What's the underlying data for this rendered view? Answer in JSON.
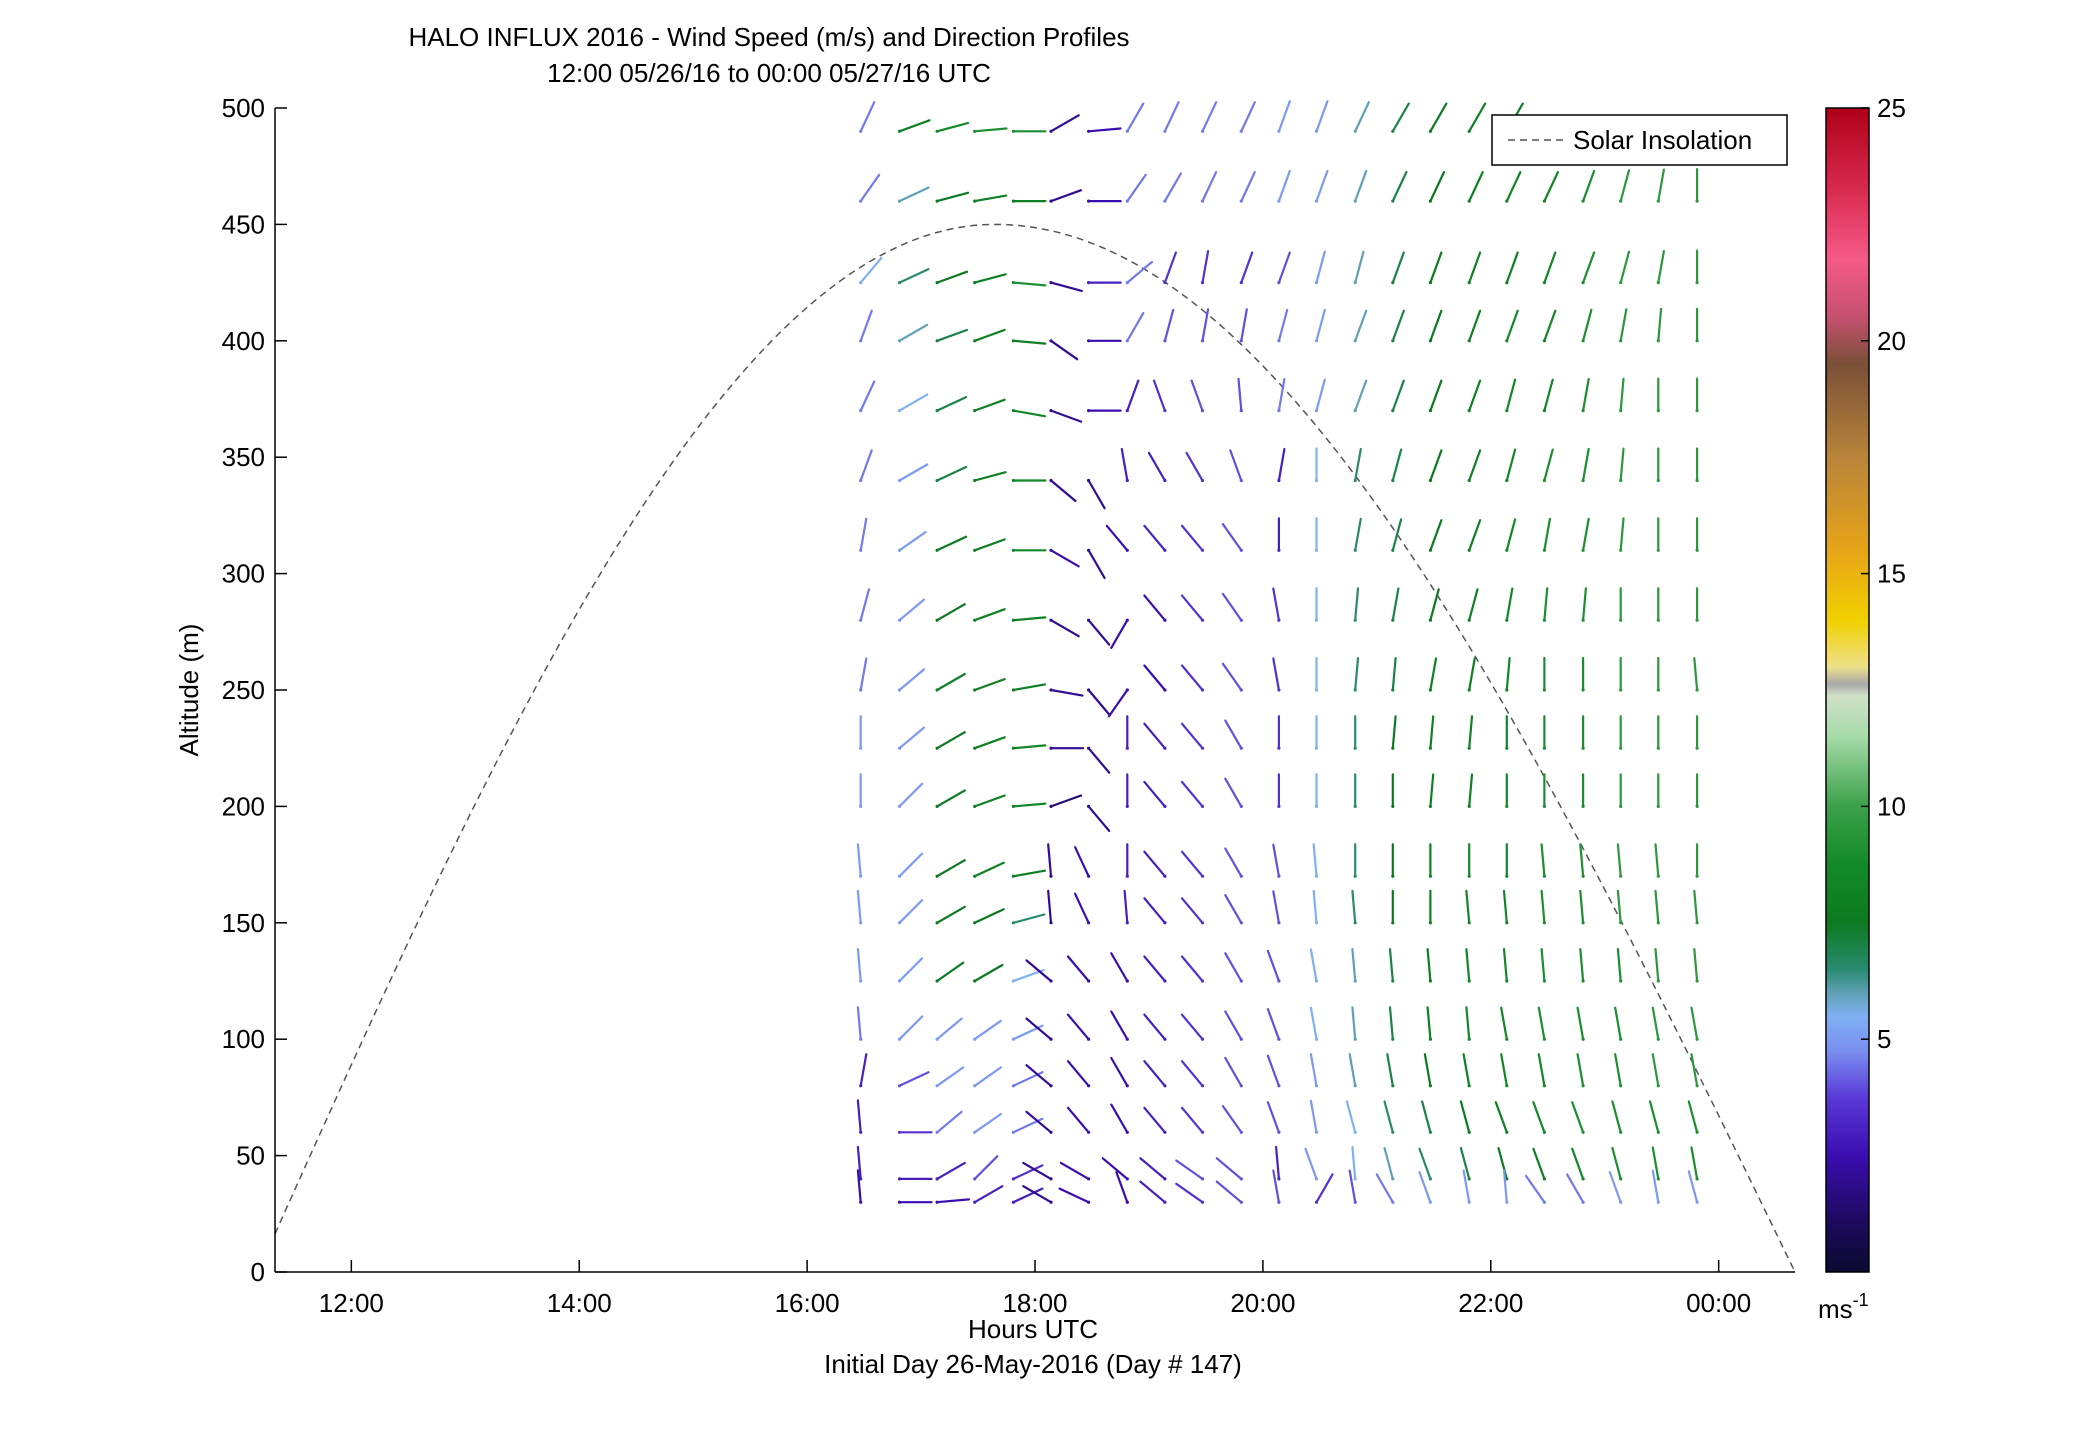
{
  "chart_data": {
    "type": "wind-barb-profile",
    "title": "HALO INFLUX 2016 - Wind Speed (m/s) and Direction Profiles",
    "subtitle": "12:00 05/26/16 to 00:00 05/27/16  UTC",
    "xlabel": "Hours UTC",
    "xlabel_note": "Initial Day 26-May-2016 (Day # 147)",
    "ylabel": "Altitude (m)",
    "x_range_hours": [
      11.33,
      24.67
    ],
    "x_ticks": [
      {
        "value": 12,
        "label": "12:00"
      },
      {
        "value": 14,
        "label": "14:00"
      },
      {
        "value": 16,
        "label": "16:00"
      },
      {
        "value": 18,
        "label": "18:00"
      },
      {
        "value": 20,
        "label": "20:00"
      },
      {
        "value": 22,
        "label": "22:00"
      },
      {
        "value": 24,
        "label": "00:00"
      }
    ],
    "ylim": [
      0,
      500
    ],
    "y_ticks": [
      0,
      50,
      100,
      150,
      200,
      250,
      300,
      350,
      400,
      450,
      500
    ],
    "colorbar": {
      "range": [
        0,
        25
      ],
      "ticks": [
        5,
        10,
        15,
        20,
        25
      ],
      "unit_label": "ms",
      "unit_exponent": "-1"
    },
    "legend": {
      "position": "top-right",
      "entries": [
        "Solar Insolation"
      ]
    },
    "solar_insolation": {
      "style": "dashed",
      "color": "#555555",
      "peak_time_hours": 17.65,
      "peak_altitude_equiv_m": 450,
      "zero_time_hours": [
        11.18,
        24.67
      ]
    },
    "wind_times_hours": [
      16.33,
      16.67,
      17.0,
      17.33,
      17.67,
      18.0,
      18.33,
      18.67,
      19.0,
      19.33,
      19.67,
      20.0,
      20.33,
      20.67,
      21.0,
      21.33,
      21.67,
      22.0,
      22.33,
      22.67,
      23.0,
      23.33,
      23.67
    ],
    "wind_altitudes_m": [
      30,
      40,
      60,
      80,
      100,
      125,
      150,
      170,
      200,
      225,
      250,
      280,
      310,
      340,
      370,
      400,
      425,
      460,
      490
    ],
    "wind_barbs": [
      {
        "alt": 490,
        "speed": [
          4.5,
          8,
          8.5,
          9,
          9,
          2,
          2.5,
          4.5,
          4.5,
          4.5,
          4.5,
          5,
          5,
          6,
          7,
          7.5,
          8,
          8
        ],
        "dir": [
          205,
          250,
          255,
          265,
          270,
          240,
          265,
          210,
          205,
          205,
          205,
          200,
          200,
          205,
          210,
          210,
          210,
          210
        ]
      },
      {
        "alt": 460,
        "speed": [
          4.5,
          6,
          7.5,
          8,
          8,
          2,
          2.5,
          4.5,
          4.5,
          4.5,
          4.5,
          5,
          5,
          6,
          7,
          7.5,
          8,
          8.5,
          8.5,
          9,
          9.5,
          9.5,
          9.5
        ],
        "dir": [
          215,
          245,
          255,
          260,
          270,
          250,
          270,
          215,
          210,
          205,
          205,
          200,
          200,
          200,
          205,
          205,
          205,
          205,
          205,
          200,
          195,
          190,
          180
        ]
      },
      {
        "alt": 425,
        "speed": [
          5.5,
          6.5,
          7.5,
          8,
          9,
          2,
          3,
          4.5,
          3.5,
          3.5,
          3.5,
          4,
          5,
          6,
          7,
          7.5,
          8,
          8,
          8.5,
          9,
          9.5,
          9.5,
          9.5
        ],
        "dir": [
          220,
          245,
          250,
          255,
          275,
          285,
          270,
          230,
          200,
          190,
          200,
          200,
          195,
          195,
          200,
          200,
          200,
          200,
          200,
          200,
          195,
          190,
          180
        ]
      },
      {
        "alt": 400,
        "speed": [
          4.5,
          6,
          7,
          8,
          8,
          2,
          2.5,
          4.5,
          4,
          4,
          4,
          4.5,
          5,
          6,
          7,
          7.5,
          8,
          8.5,
          8.5,
          9,
          9.5,
          9.5,
          9.5
        ],
        "dir": [
          200,
          240,
          250,
          250,
          275,
          305,
          270,
          210,
          195,
          190,
          190,
          195,
          195,
          200,
          200,
          200,
          200,
          200,
          200,
          195,
          190,
          185,
          180
        ]
      },
      {
        "alt": 370,
        "speed": [
          4.5,
          5.5,
          7,
          8,
          8.5,
          2,
          2.5,
          3,
          3.5,
          4,
          4,
          4.5,
          5,
          6,
          7,
          7.5,
          8,
          8.5,
          8.5,
          9,
          9.5,
          9.5,
          9.5
        ],
        "dir": [
          205,
          240,
          245,
          250,
          280,
          290,
          270,
          200,
          160,
          160,
          175,
          190,
          195,
          200,
          200,
          200,
          200,
          195,
          195,
          190,
          185,
          180,
          180
        ]
      },
      {
        "alt": 340,
        "speed": [
          4.5,
          5,
          7,
          8,
          8.5,
          2,
          2,
          3,
          3,
          3.5,
          4,
          3,
          5.5,
          6.5,
          7,
          7.5,
          8,
          8.5,
          9,
          9,
          9.5,
          9.5,
          9.5
        ],
        "dir": [
          200,
          240,
          245,
          255,
          270,
          310,
          330,
          170,
          150,
          150,
          160,
          190,
          180,
          190,
          195,
          200,
          200,
          195,
          195,
          190,
          185,
          180,
          180
        ]
      },
      {
        "alt": 310,
        "speed": [
          4.5,
          5,
          7.5,
          8,
          8.5,
          2.5,
          2,
          2.5,
          3,
          3.5,
          4,
          3,
          5.5,
          6.5,
          7,
          7.5,
          8,
          8.5,
          9,
          9,
          9.5,
          9.5,
          9.5
        ],
        "dir": [
          190,
          235,
          245,
          250,
          270,
          300,
          330,
          140,
          140,
          140,
          145,
          180,
          180,
          190,
          195,
          200,
          200,
          195,
          190,
          190,
          185,
          180,
          180
        ]
      },
      {
        "alt": 280,
        "speed": [
          4.5,
          5,
          7.5,
          8,
          8,
          2,
          2,
          2.5,
          2.5,
          3.5,
          4,
          3.5,
          5.5,
          6.5,
          7,
          7.5,
          8,
          8.5,
          9,
          9,
          9.5,
          9.5,
          9.5
        ],
        "dir": [
          195,
          230,
          240,
          250,
          265,
          300,
          320,
          30,
          140,
          140,
          145,
          170,
          180,
          185,
          190,
          195,
          195,
          190,
          185,
          185,
          180,
          180,
          180
        ]
      },
      {
        "alt": 250,
        "speed": [
          4.5,
          5,
          8,
          8,
          8,
          2,
          2,
          2.5,
          2.5,
          3.5,
          4,
          3.5,
          5.5,
          6.5,
          7,
          8,
          8,
          8.5,
          9,
          9,
          9.5,
          9.5,
          9.5
        ],
        "dir": [
          190,
          230,
          240,
          250,
          260,
          280,
          320,
          35,
          140,
          140,
          145,
          170,
          180,
          185,
          185,
          190,
          190,
          185,
          180,
          180,
          180,
          180,
          175
        ]
      },
      {
        "alt": 225,
        "speed": [
          5,
          5,
          7.5,
          8,
          8.5,
          2,
          2,
          3,
          3,
          3.5,
          4,
          3.5,
          5.5,
          6.5,
          7.5,
          8,
          8,
          8.5,
          9,
          9,
          9.5,
          9.5,
          9.5
        ],
        "dir": [
          180,
          230,
          240,
          250,
          265,
          270,
          320,
          180,
          140,
          140,
          150,
          180,
          180,
          180,
          185,
          185,
          185,
          180,
          180,
          180,
          180,
          180,
          180
        ]
      },
      {
        "alt": 200,
        "speed": [
          5,
          5,
          7.5,
          8,
          8.5,
          1.5,
          2,
          3,
          3,
          3.5,
          4,
          3.5,
          5.5,
          6.5,
          7.5,
          8,
          8,
          8.5,
          9,
          9,
          9.5,
          9.5,
          9.5
        ],
        "dir": [
          180,
          225,
          240,
          250,
          265,
          250,
          320,
          180,
          140,
          140,
          150,
          180,
          180,
          180,
          180,
          185,
          185,
          180,
          180,
          180,
          180,
          180,
          180
        ]
      },
      {
        "alt": 170,
        "speed": [
          5,
          5,
          7.5,
          8,
          8,
          2,
          2.5,
          3,
          3,
          3.5,
          4,
          4,
          5.5,
          6.5,
          7.5,
          8,
          8.5,
          8.5,
          9,
          9,
          9.5,
          9.5,
          9.5
        ],
        "dir": [
          175,
          225,
          240,
          245,
          260,
          175,
          155,
          180,
          140,
          140,
          150,
          170,
          175,
          180,
          180,
          180,
          180,
          180,
          175,
          175,
          175,
          175,
          180
        ]
      },
      {
        "alt": 150,
        "speed": [
          5,
          5,
          7.5,
          7.5,
          6.5,
          2,
          2.5,
          3,
          3,
          3.5,
          4,
          4,
          5.5,
          6.5,
          7.5,
          8,
          8.5,
          8.5,
          9,
          9,
          9.5,
          9.5,
          9.5
        ],
        "dir": [
          175,
          225,
          240,
          245,
          255,
          175,
          155,
          175,
          140,
          140,
          150,
          170,
          175,
          175,
          180,
          180,
          175,
          175,
          175,
          175,
          175,
          175,
          175
        ]
      },
      {
        "alt": 125,
        "speed": [
          5,
          5,
          7.5,
          7.5,
          5.5,
          2,
          2.5,
          2.5,
          3,
          3.5,
          4,
          4,
          5.5,
          6,
          7,
          8,
          8.5,
          8.5,
          9,
          9,
          9,
          9.5,
          9.5
        ],
        "dir": [
          175,
          225,
          235,
          240,
          250,
          130,
          140,
          150,
          140,
          140,
          150,
          160,
          170,
          175,
          175,
          175,
          175,
          175,
          175,
          175,
          175,
          175,
          175
        ]
      },
      {
        "alt": 100,
        "speed": [
          4.5,
          5,
          5,
          5,
          5,
          2,
          2.5,
          2.5,
          3,
          3.5,
          4,
          4,
          5.5,
          6,
          7,
          8,
          8.5,
          8.5,
          9,
          9,
          9,
          9.5,
          9.5
        ],
        "dir": [
          175,
          225,
          230,
          235,
          245,
          130,
          140,
          150,
          140,
          140,
          150,
          160,
          170,
          175,
          175,
          175,
          175,
          170,
          170,
          170,
          170,
          170,
          170
        ]
      },
      {
        "alt": 80,
        "speed": [
          3,
          4,
          5,
          5,
          4.5,
          2,
          2.5,
          2.5,
          3,
          3.5,
          4,
          4,
          5,
          6,
          7,
          7.5,
          8,
          8.5,
          8.5,
          9,
          9,
          9.5,
          9.5
        ],
        "dir": [
          190,
          245,
          235,
          235,
          245,
          130,
          140,
          150,
          140,
          140,
          150,
          160,
          170,
          170,
          170,
          170,
          170,
          170,
          170,
          170,
          170,
          170,
          170
        ]
      },
      {
        "alt": 60,
        "speed": [
          3,
          3.5,
          4.5,
          5,
          4.5,
          2,
          2.5,
          2.5,
          3,
          3.5,
          4,
          4,
          5,
          5.5,
          6.5,
          7,
          7.5,
          8,
          8.5,
          9,
          9,
          9,
          9
        ],
        "dir": [
          175,
          270,
          230,
          235,
          245,
          130,
          140,
          150,
          140,
          140,
          145,
          160,
          170,
          165,
          165,
          165,
          165,
          160,
          160,
          160,
          165,
          165,
          165
        ]
      },
      {
        "alt": 40,
        "speed": [
          3,
          3,
          3,
          4,
          3.5,
          2,
          2.5,
          2.5,
          3,
          4,
          4,
          3,
          5,
          5.5,
          6,
          6.5,
          7,
          7.5,
          8,
          8.5,
          9,
          9,
          9
        ],
        "dir": [
          175,
          270,
          240,
          225,
          245,
          120,
          120,
          130,
          130,
          125,
          130,
          175,
          160,
          175,
          165,
          160,
          165,
          165,
          160,
          160,
          165,
          170,
          170
        ]
      },
      {
        "alt": 30,
        "speed": [
          2.5,
          2.5,
          2.5,
          3,
          3,
          2,
          2.5,
          2.5,
          3,
          3.5,
          4,
          4,
          3.5,
          4,
          4.5,
          5,
          5,
          5,
          4.5,
          4.5,
          5,
          5,
          5
        ],
        "dir": [
          175,
          270,
          265,
          240,
          245,
          120,
          115,
          160,
          130,
          125,
          130,
          170,
          210,
          170,
          150,
          160,
          170,
          175,
          145,
          150,
          160,
          170,
          165
        ]
      }
    ]
  },
  "colors": {
    "axis": "#000000",
    "solar_line": "#555555"
  }
}
